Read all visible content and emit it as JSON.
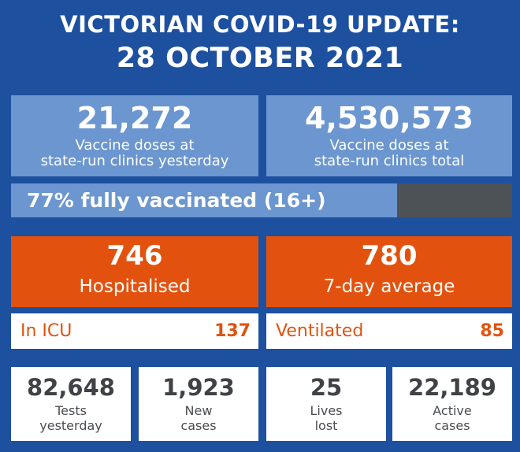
{
  "header": {
    "line1": "VICTORIAN COVID-19 UPDATE:",
    "line2": "28 OCTOBER 2021"
  },
  "vaccine": {
    "yesterday": {
      "value": "21,272",
      "label1": "Vaccine doses at",
      "label2": "state-run clinics yesterday"
    },
    "total": {
      "value": "4,530,573",
      "label1": "Vaccine doses at",
      "label2": "state-run clinics total"
    }
  },
  "coverage": {
    "label": "77% fully vaccinated (16+)",
    "fraction": 0.77
  },
  "hospital": {
    "hospitalised": {
      "value": "746",
      "label": "Hospitalised"
    },
    "average": {
      "value": "780",
      "label": "7-day average"
    },
    "icu": {
      "label": "In ICU",
      "value": "137"
    },
    "ventilated": {
      "label": "Ventilated",
      "value": "85"
    }
  },
  "stats": [
    {
      "value": "82,648",
      "label1": "Tests",
      "label2": "yesterday"
    },
    {
      "value": "1,923",
      "label1": "New",
      "label2": "cases"
    },
    {
      "value": "25",
      "label1": "Lives",
      "label2": "lost"
    },
    {
      "value": "22,189",
      "label1": "Active",
      "label2": "cases"
    }
  ],
  "colors": {
    "background": "#1e50a0",
    "light_blue": "#6b96cf",
    "orange": "#e2520e",
    "dark_grey": "#4d5257",
    "text_grey": "#3f4246"
  }
}
